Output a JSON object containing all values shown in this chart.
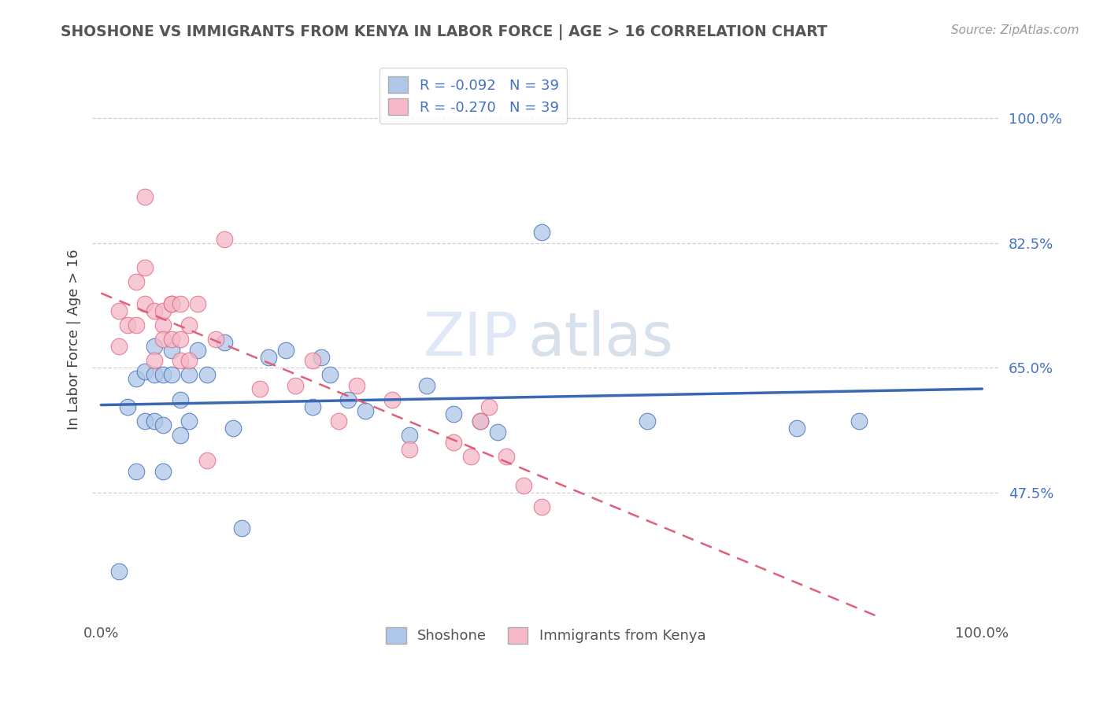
{
  "title": "SHOSHONE VS IMMIGRANTS FROM KENYA IN LABOR FORCE | AGE > 16 CORRELATION CHART",
  "source_text": "Source: ZipAtlas.com",
  "ylabel": "In Labor Force | Age > 16",
  "watermark_line1": "ZIP",
  "watermark_line2": "atlas",
  "legend_labels": [
    "Shoshone",
    "Immigrants from Kenya"
  ],
  "shoshone_color": "#aec6e8",
  "kenya_color": "#f5b8c8",
  "shoshone_line_color": "#3a68b4",
  "kenya_line_color": "#e0607a",
  "R_shoshone": -0.092,
  "N_shoshone": 39,
  "R_kenya": -0.27,
  "N_kenya": 39,
  "yticks": [
    0.475,
    0.65,
    0.825,
    1.0
  ],
  "ytick_labels": [
    "47.5%",
    "65.0%",
    "82.5%",
    "100.0%"
  ],
  "xticks": [
    0.0,
    1.0
  ],
  "xtick_labels": [
    "0.0%",
    "100.0%"
  ],
  "xlim": [
    -0.01,
    1.02
  ],
  "ylim": [
    0.3,
    1.08
  ],
  "shoshone_x": [
    0.02,
    0.03,
    0.04,
    0.04,
    0.05,
    0.05,
    0.06,
    0.06,
    0.06,
    0.07,
    0.07,
    0.07,
    0.08,
    0.08,
    0.09,
    0.09,
    0.1,
    0.1,
    0.11,
    0.12,
    0.14,
    0.15,
    0.16,
    0.19,
    0.21,
    0.24,
    0.25,
    0.26,
    0.28,
    0.3,
    0.35,
    0.37,
    0.4,
    0.43,
    0.45,
    0.5,
    0.62,
    0.79,
    0.86
  ],
  "shoshone_y": [
    0.365,
    0.595,
    0.635,
    0.505,
    0.645,
    0.575,
    0.64,
    0.68,
    0.575,
    0.64,
    0.57,
    0.505,
    0.64,
    0.675,
    0.605,
    0.555,
    0.64,
    0.575,
    0.675,
    0.64,
    0.685,
    0.565,
    0.425,
    0.665,
    0.675,
    0.595,
    0.665,
    0.64,
    0.605,
    0.59,
    0.555,
    0.625,
    0.585,
    0.575,
    0.56,
    0.84,
    0.575,
    0.565,
    0.575
  ],
  "kenya_x": [
    0.02,
    0.02,
    0.03,
    0.04,
    0.04,
    0.05,
    0.05,
    0.05,
    0.06,
    0.06,
    0.07,
    0.07,
    0.07,
    0.08,
    0.08,
    0.08,
    0.09,
    0.09,
    0.09,
    0.1,
    0.1,
    0.11,
    0.12,
    0.13,
    0.14,
    0.18,
    0.22,
    0.24,
    0.27,
    0.29,
    0.33,
    0.35,
    0.4,
    0.42,
    0.43,
    0.44,
    0.46,
    0.48,
    0.5
  ],
  "kenya_y": [
    0.68,
    0.73,
    0.71,
    0.77,
    0.71,
    0.79,
    0.74,
    0.89,
    0.73,
    0.66,
    0.71,
    0.69,
    0.73,
    0.74,
    0.69,
    0.74,
    0.74,
    0.69,
    0.66,
    0.66,
    0.71,
    0.74,
    0.52,
    0.69,
    0.83,
    0.62,
    0.625,
    0.66,
    0.575,
    0.625,
    0.605,
    0.535,
    0.545,
    0.525,
    0.575,
    0.595,
    0.525,
    0.485,
    0.455
  ]
}
